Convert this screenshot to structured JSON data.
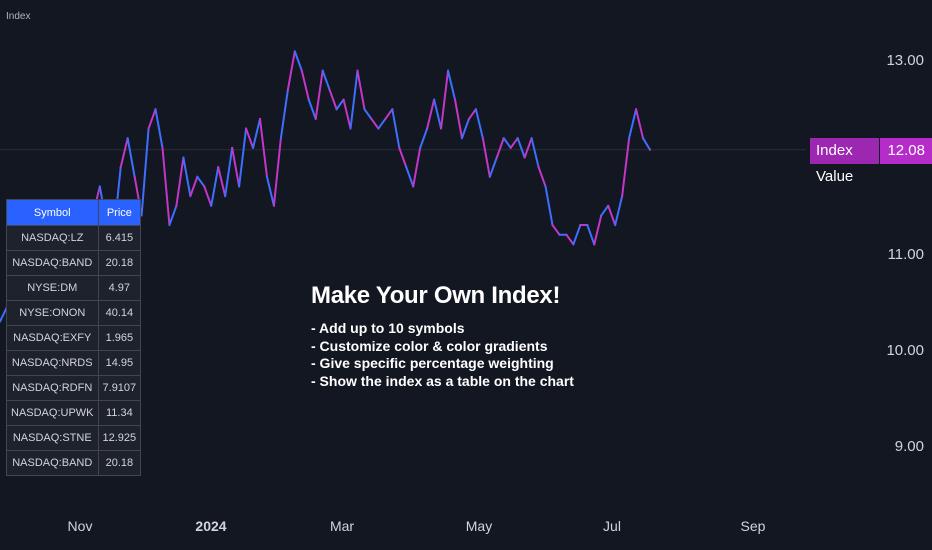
{
  "header": {
    "title": "Index"
  },
  "y_axis": {
    "ticks": [
      "13.00",
      "11.00",
      "10.00",
      "9.00"
    ]
  },
  "x_axis": {
    "ticks": [
      {
        "label": "Nov",
        "bold": false
      },
      {
        "label": "2024",
        "bold": true
      },
      {
        "label": "Mar",
        "bold": false
      },
      {
        "label": "May",
        "bold": false
      },
      {
        "label": "Jul",
        "bold": false
      },
      {
        "label": "Sep",
        "bold": false
      }
    ]
  },
  "price_tag": {
    "name": "Index Value",
    "value": "12.08"
  },
  "symbols_table": {
    "headers": [
      "Symbol",
      "Price"
    ],
    "rows": [
      [
        "NASDAQ:LZ",
        "6.415"
      ],
      [
        "NASDAQ:BAND",
        "20.18"
      ],
      [
        "NYSE:DM",
        "4.97"
      ],
      [
        "NYSE:ONON",
        "40.14"
      ],
      [
        "NASDAQ:EXFY",
        "1.965"
      ],
      [
        "NASDAQ:NRDS",
        "14.95"
      ],
      [
        "NASDAQ:RDFN",
        "7.9107"
      ],
      [
        "NASDAQ:UPWK",
        "11.34"
      ],
      [
        "NASDAQ:STNE",
        "12.925"
      ],
      [
        "NASDAQ:BAND",
        "20.18"
      ]
    ]
  },
  "promo": {
    "title": "Make Your Own Index!",
    "bullets": [
      "- Add up to 10 symbols",
      "- Customize color & color gradients",
      "- Give specific percentage weighting",
      "- Show the index as a table on the chart"
    ]
  },
  "colors": {
    "background": "#131722",
    "line_blue": "#3d6fff",
    "line_purple": "#c336c8",
    "table_header": "#2962ff",
    "tag": "#9c27b0"
  },
  "chart_data": {
    "type": "line",
    "title": "Index",
    "xlabel": "",
    "ylabel": "",
    "ylim": [
      8.7,
      13.4
    ],
    "yticks": [
      13.0,
      11.0,
      10.0,
      9.0
    ],
    "x": [
      "2023-10-11",
      "2023-10-15",
      "2023-10-18",
      "2023-10-21",
      "2023-10-24",
      "2023-10-27",
      "2023-10-30",
      "2023-11-02",
      "2023-11-05",
      "2023-11-08",
      "2023-11-11",
      "2023-11-14",
      "2023-11-17",
      "2023-11-20",
      "2023-11-23",
      "2023-11-26",
      "2023-11-29",
      "2023-12-02",
      "2023-12-05",
      "2023-12-08",
      "2023-12-11",
      "2023-12-14",
      "2023-12-17",
      "2023-12-20",
      "2023-12-23",
      "2023-12-26",
      "2023-12-29",
      "2024-01-01",
      "2024-01-04",
      "2024-01-07",
      "2024-01-10",
      "2024-01-13",
      "2024-01-16",
      "2024-01-19",
      "2024-01-22",
      "2024-01-25",
      "2024-01-28",
      "2024-01-31",
      "2024-02-03",
      "2024-02-06",
      "2024-02-09",
      "2024-02-12",
      "2024-02-15",
      "2024-02-18",
      "2024-02-21",
      "2024-02-24",
      "2024-02-27",
      "2024-03-01",
      "2024-03-04",
      "2024-03-07",
      "2024-03-10",
      "2024-03-13",
      "2024-03-16",
      "2024-03-19",
      "2024-03-22",
      "2024-03-25",
      "2024-03-28",
      "2024-03-31",
      "2024-04-03",
      "2024-04-06",
      "2024-04-09",
      "2024-04-12",
      "2024-04-15",
      "2024-04-18",
      "2024-04-21",
      "2024-04-24",
      "2024-04-27",
      "2024-04-30",
      "2024-05-03",
      "2024-05-06",
      "2024-05-09",
      "2024-05-12",
      "2024-05-15",
      "2024-05-18",
      "2024-05-21",
      "2024-05-24",
      "2024-05-27",
      "2024-05-30",
      "2024-06-02",
      "2024-06-05",
      "2024-06-08",
      "2024-06-11",
      "2024-06-14",
      "2024-06-17",
      "2024-06-20",
      "2024-06-23",
      "2024-06-26",
      "2024-06-29",
      "2024-07-02",
      "2024-07-05",
      "2024-07-08",
      "2024-07-11",
      "2024-07-14",
      "2024-07-17"
    ],
    "series": [
      {
        "values": [
          10.3,
          10.5,
          10.6,
          10.4,
          10.8,
          10.6,
          10.7,
          10.4,
          10.9,
          10.7,
          11.0,
          11.2,
          11.0,
          11.4,
          11.7,
          11.3,
          11.2,
          11.9,
          12.2,
          11.8,
          11.4,
          12.3,
          12.5,
          12.1,
          11.3,
          11.5,
          12.0,
          11.6,
          11.8,
          11.7,
          11.5,
          11.9,
          11.6,
          12.1,
          11.7,
          12.3,
          12.1,
          12.4,
          11.8,
          11.5,
          12.2,
          12.7,
          13.1,
          12.9,
          12.6,
          12.4,
          12.9,
          12.7,
          12.5,
          12.6,
          12.3,
          12.9,
          12.5,
          12.4,
          12.3,
          12.4,
          12.5,
          12.1,
          11.9,
          11.7,
          12.1,
          12.3,
          12.6,
          12.3,
          12.9,
          12.6,
          12.2,
          12.4,
          12.5,
          12.2,
          11.8,
          12.0,
          12.2,
          12.1,
          12.2,
          12.0,
          12.2,
          11.9,
          11.7,
          11.3,
          11.2,
          11.2,
          11.1,
          11.3,
          11.3,
          11.1,
          11.4,
          11.5,
          11.3,
          11.6,
          12.2,
          12.5,
          12.2,
          12.08
        ]
      }
    ]
  }
}
